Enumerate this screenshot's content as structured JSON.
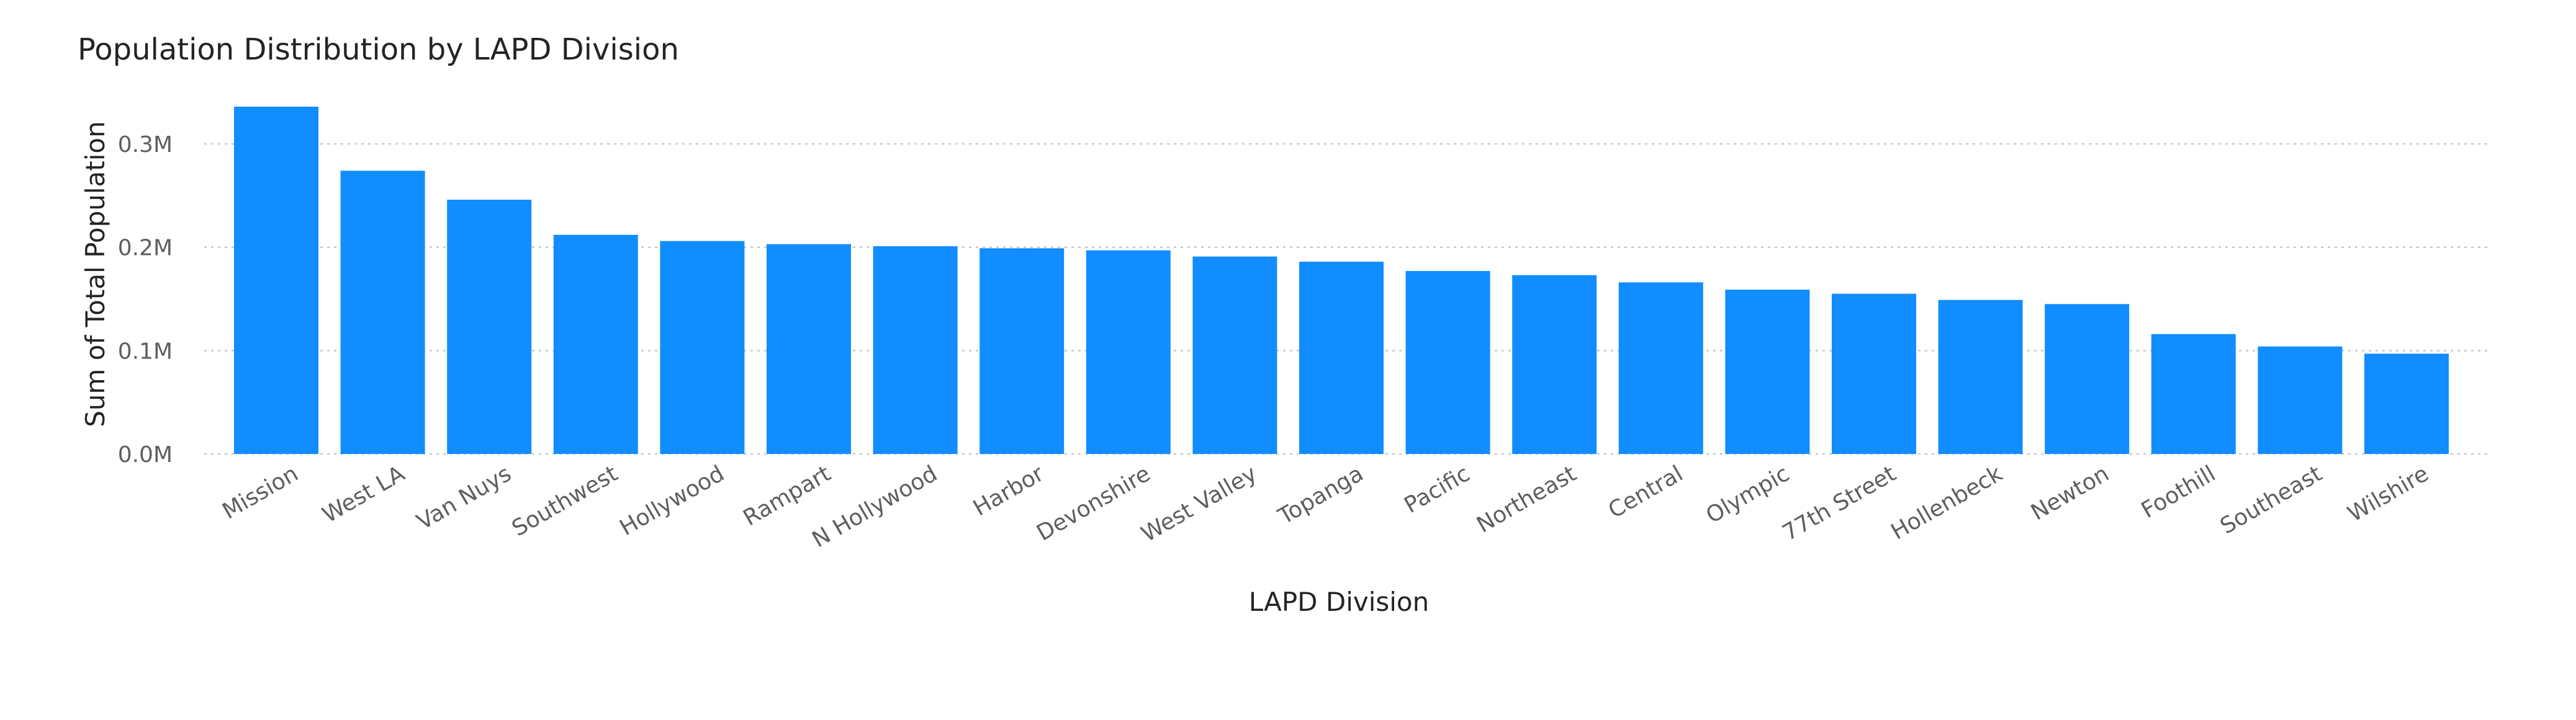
{
  "chart_data": {
    "type": "bar",
    "title": "Population Distribution by LAPD Division",
    "xlabel": "LAPD Division",
    "ylabel": "Sum of Total Population",
    "categories": [
      "Mission",
      "West LA",
      "Van Nuys",
      "Southwest",
      "Hollywood",
      "Rampart",
      "N Hollywood",
      "Harbor",
      "Devonshire",
      "West Valley",
      "Topanga",
      "Pacific",
      "Northeast",
      "Central",
      "Olympic",
      "77th Street",
      "Hollenbeck",
      "Newton",
      "Foothill",
      "Southeast",
      "Wilshire"
    ],
    "series": [
      {
        "values": [
          336000,
          274000,
          246000,
          212000,
          206000,
          203000,
          201000,
          199000,
          197000,
          191000,
          186000,
          177000,
          173000,
          166000,
          159000,
          155000,
          149000,
          145000,
          116000,
          104000,
          97000
        ]
      }
    ],
    "ylim": [
      0,
      340000
    ],
    "yticks": [
      {
        "value": 0,
        "label": "0.0M"
      },
      {
        "value": 100000,
        "label": "0.1M"
      },
      {
        "value": 200000,
        "label": "0.2M"
      },
      {
        "value": 300000,
        "label": "0.3M"
      }
    ],
    "grid": true,
    "legend": "none",
    "colors": {
      "bar": "#118dff",
      "grid": "#c8c6c4",
      "title": "#252423",
      "tick": "#605e5c"
    }
  }
}
